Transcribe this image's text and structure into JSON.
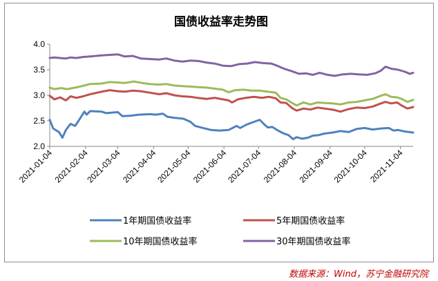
{
  "chart_data": {
    "type": "line",
    "title": "国债收益率走势图",
    "xlabel": "",
    "ylabel": "",
    "ylim": [
      2.0,
      4.0
    ],
    "yticks": [
      "2.0",
      "2.5",
      "3.0",
      "3.5",
      "4.0"
    ],
    "x_tick_labels": [
      "2021-01-04",
      "2021-02-04",
      "2021-03-04",
      "2021-04-04",
      "2021-05-04",
      "2021-06-04",
      "2021-07-04",
      "2021-08-04",
      "2021-09-04",
      "2021-10-04",
      "2021-11-04"
    ],
    "x_range": [
      "2021-01-04",
      "2021-11-15"
    ],
    "grid": false,
    "legend_position": "bottom",
    "series": [
      {
        "name": "1年期国债收益率",
        "color": "#4f81bd",
        "points": [
          [
            "2021-01-04",
            2.52
          ],
          [
            "2021-01-07",
            2.35
          ],
          [
            "2021-01-12",
            2.28
          ],
          [
            "2021-01-15",
            2.17
          ],
          [
            "2021-01-18",
            2.32
          ],
          [
            "2021-01-22",
            2.44
          ],
          [
            "2021-01-26",
            2.4
          ],
          [
            "2021-01-29",
            2.5
          ],
          [
            "2021-02-03",
            2.68
          ],
          [
            "2021-02-05",
            2.62
          ],
          [
            "2021-02-08",
            2.69
          ],
          [
            "2021-02-18",
            2.68
          ],
          [
            "2021-02-22",
            2.65
          ],
          [
            "2021-03-04",
            2.67
          ],
          [
            "2021-03-08",
            2.59
          ],
          [
            "2021-03-15",
            2.6
          ],
          [
            "2021-03-22",
            2.62
          ],
          [
            "2021-04-01",
            2.63
          ],
          [
            "2021-04-06",
            2.62
          ],
          [
            "2021-04-12",
            2.64
          ],
          [
            "2021-04-16",
            2.58
          ],
          [
            "2021-04-22",
            2.56
          ],
          [
            "2021-04-30",
            2.54
          ],
          [
            "2021-05-06",
            2.48
          ],
          [
            "2021-05-10",
            2.4
          ],
          [
            "2021-05-17",
            2.36
          ],
          [
            "2021-05-24",
            2.32
          ],
          [
            "2021-05-31",
            2.31
          ],
          [
            "2021-06-08",
            2.32
          ],
          [
            "2021-06-15",
            2.4
          ],
          [
            "2021-06-18",
            2.36
          ],
          [
            "2021-06-24",
            2.43
          ],
          [
            "2021-06-30",
            2.48
          ],
          [
            "2021-07-05",
            2.52
          ],
          [
            "2021-07-09",
            2.43
          ],
          [
            "2021-07-12",
            2.37
          ],
          [
            "2021-07-16",
            2.38
          ],
          [
            "2021-07-20",
            2.32
          ],
          [
            "2021-07-26",
            2.25
          ],
          [
            "2021-07-30",
            2.22
          ],
          [
            "2021-08-03",
            2.14
          ],
          [
            "2021-08-06",
            2.18
          ],
          [
            "2021-08-11",
            2.15
          ],
          [
            "2021-08-16",
            2.17
          ],
          [
            "2021-08-20",
            2.21
          ],
          [
            "2021-08-25",
            2.22
          ],
          [
            "2021-08-30",
            2.25
          ],
          [
            "2021-09-06",
            2.27
          ],
          [
            "2021-09-13",
            2.3
          ],
          [
            "2021-09-20",
            2.28
          ],
          [
            "2021-09-27",
            2.34
          ],
          [
            "2021-10-04",
            2.36
          ],
          [
            "2021-10-11",
            2.33
          ],
          [
            "2021-10-18",
            2.35
          ],
          [
            "2021-10-25",
            2.36
          ],
          [
            "2021-10-29",
            2.31
          ],
          [
            "2021-11-02",
            2.32
          ],
          [
            "2021-11-08",
            2.29
          ],
          [
            "2021-11-15",
            2.27
          ]
        ]
      },
      {
        "name": "5年期国债收益率",
        "color": "#c0504d",
        "points": [
          [
            "2021-01-04",
            2.99
          ],
          [
            "2021-01-08",
            2.92
          ],
          [
            "2021-01-13",
            2.96
          ],
          [
            "2021-01-18",
            2.9
          ],
          [
            "2021-01-22",
            2.98
          ],
          [
            "2021-01-27",
            2.95
          ],
          [
            "2021-02-02",
            2.98
          ],
          [
            "2021-02-08",
            3.02
          ],
          [
            "2021-02-18",
            3.07
          ],
          [
            "2021-02-25",
            3.1
          ],
          [
            "2021-03-04",
            3.08
          ],
          [
            "2021-03-10",
            3.07
          ],
          [
            "2021-03-17",
            3.09
          ],
          [
            "2021-03-24",
            3.08
          ],
          [
            "2021-04-01",
            3.05
          ],
          [
            "2021-04-09",
            3.02
          ],
          [
            "2021-04-15",
            3.04
          ],
          [
            "2021-04-22",
            3.0
          ],
          [
            "2021-04-29",
            2.98
          ],
          [
            "2021-05-06",
            2.97
          ],
          [
            "2021-05-12",
            2.95
          ],
          [
            "2021-05-20",
            2.93
          ],
          [
            "2021-05-27",
            2.95
          ],
          [
            "2021-06-03",
            2.92
          ],
          [
            "2021-06-08",
            2.9
          ],
          [
            "2021-06-11",
            2.86
          ],
          [
            "2021-06-16",
            2.92
          ],
          [
            "2021-06-23",
            2.95
          ],
          [
            "2021-06-30",
            2.97
          ],
          [
            "2021-07-07",
            2.95
          ],
          [
            "2021-07-13",
            2.97
          ],
          [
            "2021-07-19",
            2.94
          ],
          [
            "2021-07-23",
            2.86
          ],
          [
            "2021-07-28",
            2.85
          ],
          [
            "2021-08-02",
            2.75
          ],
          [
            "2021-08-06",
            2.7
          ],
          [
            "2021-08-12",
            2.74
          ],
          [
            "2021-08-18",
            2.72
          ],
          [
            "2021-08-24",
            2.76
          ],
          [
            "2021-08-30",
            2.74
          ],
          [
            "2021-09-06",
            2.72
          ],
          [
            "2021-09-13",
            2.68
          ],
          [
            "2021-09-20",
            2.73
          ],
          [
            "2021-09-27",
            2.76
          ],
          [
            "2021-10-04",
            2.75
          ],
          [
            "2021-10-11",
            2.78
          ],
          [
            "2021-10-18",
            2.84
          ],
          [
            "2021-10-22",
            2.87
          ],
          [
            "2021-10-27",
            2.84
          ],
          [
            "2021-11-01",
            2.86
          ],
          [
            "2021-11-05",
            2.8
          ],
          [
            "2021-11-10",
            2.74
          ],
          [
            "2021-11-15",
            2.77
          ]
        ]
      },
      {
        "name": "10年期国债收益率",
        "color": "#9bbb59",
        "points": [
          [
            "2021-01-04",
            3.15
          ],
          [
            "2021-01-08",
            3.12
          ],
          [
            "2021-01-14",
            3.14
          ],
          [
            "2021-01-19",
            3.12
          ],
          [
            "2021-01-26",
            3.15
          ],
          [
            "2021-02-01",
            3.18
          ],
          [
            "2021-02-08",
            3.22
          ],
          [
            "2021-02-18",
            3.23
          ],
          [
            "2021-02-25",
            3.26
          ],
          [
            "2021-03-04",
            3.25
          ],
          [
            "2021-03-10",
            3.24
          ],
          [
            "2021-03-18",
            3.27
          ],
          [
            "2021-03-25",
            3.24
          ],
          [
            "2021-04-01",
            3.22
          ],
          [
            "2021-04-08",
            3.21
          ],
          [
            "2021-04-15",
            3.22
          ],
          [
            "2021-04-22",
            3.19
          ],
          [
            "2021-04-29",
            3.18
          ],
          [
            "2021-05-06",
            3.17
          ],
          [
            "2021-05-13",
            3.16
          ],
          [
            "2021-05-20",
            3.15
          ],
          [
            "2021-05-27",
            3.13
          ],
          [
            "2021-06-03",
            3.11
          ],
          [
            "2021-06-08",
            3.06
          ],
          [
            "2021-06-14",
            3.1
          ],
          [
            "2021-06-21",
            3.11
          ],
          [
            "2021-06-28",
            3.09
          ],
          [
            "2021-07-05",
            3.09
          ],
          [
            "2021-07-12",
            3.07
          ],
          [
            "2021-07-19",
            3.05
          ],
          [
            "2021-07-23",
            2.95
          ],
          [
            "2021-07-28",
            2.92
          ],
          [
            "2021-08-02",
            2.85
          ],
          [
            "2021-08-06",
            2.8
          ],
          [
            "2021-08-12",
            2.86
          ],
          [
            "2021-08-18",
            2.82
          ],
          [
            "2021-08-24",
            2.86
          ],
          [
            "2021-08-30",
            2.85
          ],
          [
            "2021-09-06",
            2.84
          ],
          [
            "2021-09-13",
            2.82
          ],
          [
            "2021-09-20",
            2.86
          ],
          [
            "2021-09-27",
            2.87
          ],
          [
            "2021-10-04",
            2.9
          ],
          [
            "2021-10-11",
            2.93
          ],
          [
            "2021-10-18",
            2.99
          ],
          [
            "2021-10-22",
            3.02
          ],
          [
            "2021-10-27",
            2.97
          ],
          [
            "2021-11-01",
            2.96
          ],
          [
            "2021-11-05",
            2.93
          ],
          [
            "2021-11-10",
            2.87
          ],
          [
            "2021-11-15",
            2.91
          ]
        ]
      },
      {
        "name": "30年期国债收益率",
        "color": "#8064a2",
        "points": [
          [
            "2021-01-04",
            3.73
          ],
          [
            "2021-01-08",
            3.74
          ],
          [
            "2021-01-13",
            3.73
          ],
          [
            "2021-01-18",
            3.72
          ],
          [
            "2021-01-22",
            3.74
          ],
          [
            "2021-01-27",
            3.73
          ],
          [
            "2021-02-02",
            3.75
          ],
          [
            "2021-02-08",
            3.76
          ],
          [
            "2021-02-18",
            3.78
          ],
          [
            "2021-02-25",
            3.79
          ],
          [
            "2021-03-04",
            3.8
          ],
          [
            "2021-03-10",
            3.76
          ],
          [
            "2021-03-17",
            3.77
          ],
          [
            "2021-03-24",
            3.72
          ],
          [
            "2021-04-01",
            3.71
          ],
          [
            "2021-04-09",
            3.7
          ],
          [
            "2021-04-15",
            3.72
          ],
          [
            "2021-04-22",
            3.68
          ],
          [
            "2021-04-29",
            3.66
          ],
          [
            "2021-05-06",
            3.68
          ],
          [
            "2021-05-13",
            3.67
          ],
          [
            "2021-05-20",
            3.64
          ],
          [
            "2021-05-27",
            3.62
          ],
          [
            "2021-06-03",
            3.58
          ],
          [
            "2021-06-10",
            3.57
          ],
          [
            "2021-06-17",
            3.61
          ],
          [
            "2021-06-24",
            3.62
          ],
          [
            "2021-07-01",
            3.65
          ],
          [
            "2021-07-08",
            3.63
          ],
          [
            "2021-07-15",
            3.62
          ],
          [
            "2021-07-20",
            3.58
          ],
          [
            "2021-07-26",
            3.52
          ],
          [
            "2021-08-02",
            3.47
          ],
          [
            "2021-08-08",
            3.42
          ],
          [
            "2021-08-14",
            3.43
          ],
          [
            "2021-08-20",
            3.4
          ],
          [
            "2021-08-26",
            3.44
          ],
          [
            "2021-09-02",
            3.4
          ],
          [
            "2021-09-08",
            3.38
          ],
          [
            "2021-09-15",
            3.41
          ],
          [
            "2021-09-22",
            3.42
          ],
          [
            "2021-09-29",
            3.41
          ],
          [
            "2021-10-06",
            3.4
          ],
          [
            "2021-10-13",
            3.43
          ],
          [
            "2021-10-18",
            3.48
          ],
          [
            "2021-10-22",
            3.56
          ],
          [
            "2021-10-27",
            3.52
          ],
          [
            "2021-11-02",
            3.5
          ],
          [
            "2021-11-08",
            3.46
          ],
          [
            "2021-11-12",
            3.42
          ],
          [
            "2021-11-15",
            3.44
          ]
        ]
      }
    ]
  },
  "legend": [
    {
      "label": "1年期国债收益率",
      "color": "#4f81bd"
    },
    {
      "label": "5年期国债收益率",
      "color": "#c0504d"
    },
    {
      "label": "10年期国债收益率",
      "color": "#9bbb59"
    },
    {
      "label": "30年期国债收益率",
      "color": "#8064a2"
    }
  ],
  "source_note": "数据来源：Wind，苏宁金融研究院"
}
